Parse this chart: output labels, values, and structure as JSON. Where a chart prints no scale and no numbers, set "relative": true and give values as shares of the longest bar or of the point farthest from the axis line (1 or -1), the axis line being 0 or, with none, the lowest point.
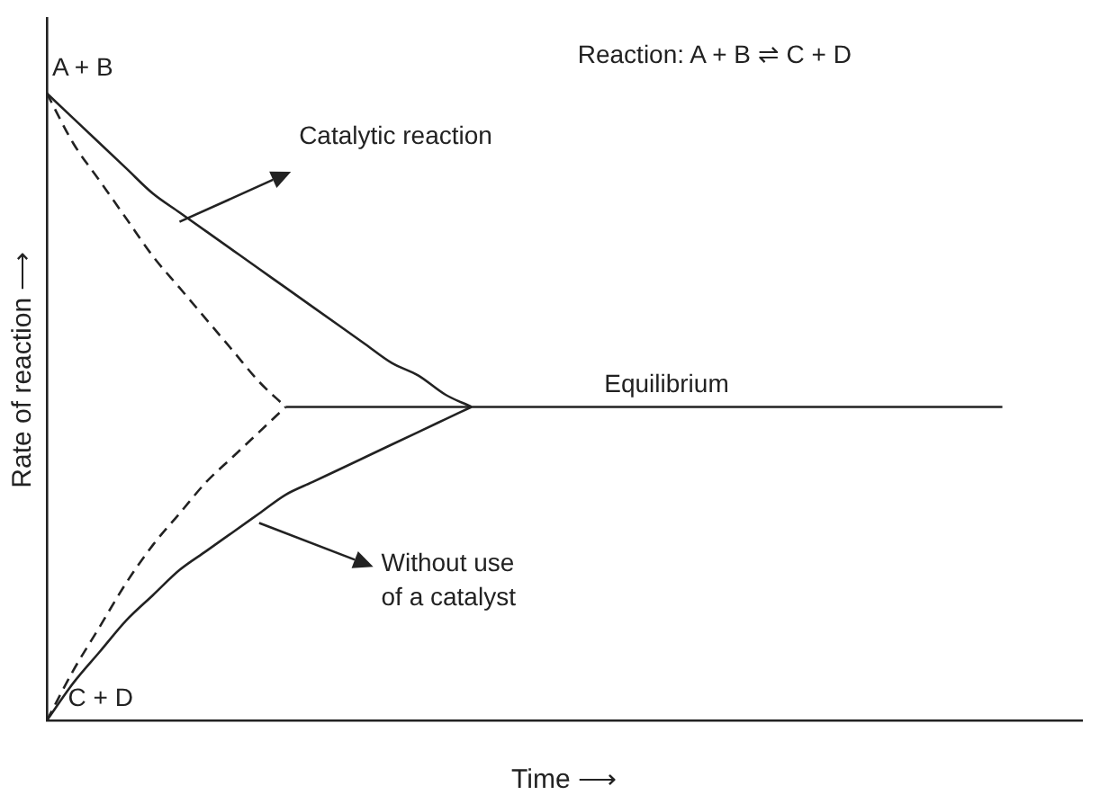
{
  "chart_data": {
    "type": "line",
    "relative": true,
    "xlabel": "Time ⟶",
    "ylabel": "Rate of reaction ⟶",
    "categories": [
      null,
      null,
      null,
      null,
      null,
      null,
      null,
      null,
      null,
      null,
      null,
      null,
      null,
      null,
      null,
      null,
      null,
      null,
      null,
      null,
      null,
      null,
      null,
      null,
      null,
      null,
      null,
      null,
      null,
      null,
      null,
      null,
      null,
      null,
      null,
      null,
      null,
      null,
      null,
      null
    ],
    "series": [
      {
        "color": "#222222",
        "line_style": "solid",
        "values": [
          1,
          0.96,
          0.92,
          0.88,
          0.84,
          0.81,
          0.78,
          0.75,
          0.72,
          0.69,
          0.66,
          0.63,
          0.6,
          0.57,
          0.55,
          0.52,
          0.5,
          null,
          null,
          null,
          null,
          null,
          null,
          null,
          null,
          null,
          null,
          null,
          null,
          null,
          null,
          null,
          null,
          null,
          null,
          null,
          null,
          null,
          null,
          null
        ]
      },
      {
        "color": "#222222",
        "line_style": "solid",
        "values": [
          0,
          0.06,
          0.11,
          0.16,
          0.2,
          0.24,
          0.27,
          0.3,
          0.33,
          0.36,
          0.38,
          0.4,
          0.42,
          0.44,
          0.46,
          0.48,
          0.5,
          null,
          null,
          null,
          null,
          null,
          null,
          null,
          null,
          null,
          null,
          null,
          null,
          null,
          null,
          null,
          null,
          null,
          null,
          null,
          null,
          null,
          null,
          null
        ]
      },
      {
        "color": "#222222",
        "line_style": "dashed",
        "values": [
          1,
          0.92,
          0.86,
          0.8,
          0.74,
          0.69,
          0.64,
          0.59,
          0.54,
          0.5,
          null,
          null,
          null,
          null,
          null,
          null,
          null,
          null,
          null,
          null,
          null,
          null,
          null,
          null,
          null,
          null,
          null,
          null,
          null,
          null,
          null,
          null,
          null,
          null,
          null,
          null,
          null,
          null,
          null,
          null
        ]
      },
      {
        "color": "#222222",
        "line_style": "dashed",
        "values": [
          0,
          0.08,
          0.15,
          0.22,
          0.28,
          0.33,
          0.38,
          0.42,
          0.46,
          0.5,
          null,
          null,
          null,
          null,
          null,
          null,
          null,
          null,
          null,
          null,
          null,
          null,
          null,
          null,
          null,
          null,
          null,
          null,
          null,
          null,
          null,
          null,
          null,
          null,
          null,
          null,
          null,
          null,
          null,
          null
        ]
      },
      {
        "color": "#222222",
        "line_style": "solid",
        "values": [
          null,
          null,
          null,
          null,
          null,
          null,
          null,
          null,
          null,
          0.5,
          0.5,
          0.5,
          0.5,
          0.5,
          0.5,
          0.5,
          0.5,
          0.5,
          0.5,
          0.5,
          0.5,
          0.5,
          0.5,
          0.5,
          0.5,
          0.5,
          0.5,
          0.5,
          0.5,
          0.5,
          0.5,
          0.5,
          0.5,
          0.5,
          0.5,
          0.5,
          0.5,
          null,
          null,
          null
        ]
      }
    ],
    "annotations": [
      "Reaction: A + B ⇌ C + D",
      "A + B",
      "C + D",
      "Catalytic reaction",
      "Equilibrium",
      "Without use\nof a catalyst"
    ],
    "grid": false,
    "legend": false,
    "marker": "none"
  }
}
